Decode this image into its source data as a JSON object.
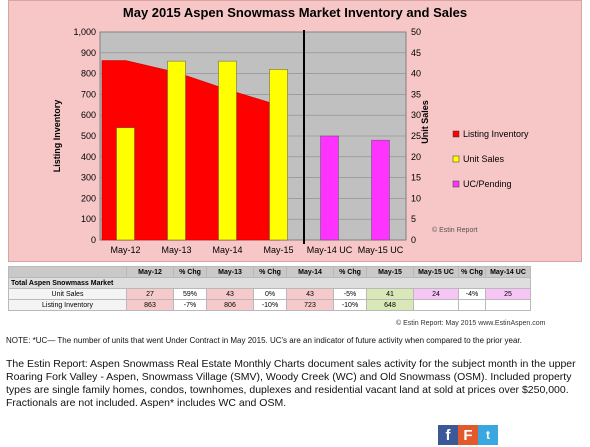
{
  "chart_data": {
    "type": "bar",
    "title": "May 2015 Aspen Snowmass Market Inventory and Sales",
    "categories": [
      "May-12",
      "May-13",
      "May-14",
      "May-15",
      "May-14 UC",
      "May-15 UC"
    ],
    "ylabel": "Listing Inventory",
    "y2label": "Unit Sales",
    "ylim": [
      0,
      1000
    ],
    "y2lim": [
      0,
      50
    ],
    "yticks": [
      "0",
      "100",
      "200",
      "300",
      "400",
      "500",
      "600",
      "700",
      "800",
      "900",
      "1,000"
    ],
    "y2ticks": [
      "0",
      "5",
      "10",
      "15",
      "20",
      "25",
      "30",
      "35",
      "40",
      "45",
      "50"
    ],
    "series": [
      {
        "name": "Listing Inventory",
        "type": "area",
        "axis": "left",
        "color": "#ff0000",
        "values": [
          863,
          806,
          723,
          648,
          null,
          null
        ]
      },
      {
        "name": "Unit Sales",
        "type": "bar",
        "axis": "right",
        "color": "#ffff00",
        "values": [
          27,
          43,
          43,
          41,
          null,
          null
        ]
      },
      {
        "name": "UC/Pending",
        "type": "bar",
        "axis": "right",
        "color": "#ff33ff",
        "values": [
          null,
          null,
          null,
          null,
          25,
          24
        ]
      }
    ],
    "grid": true,
    "legend_position": "right"
  },
  "table": {
    "headers": [
      "May-12",
      "% Chg",
      "May-13",
      "% Chg",
      "May-14",
      "% Chg",
      "May-15",
      "May-15 UC",
      "% Chg",
      "May-14 UC"
    ],
    "group_label": "Total Aspen Snowmass Market",
    "rows": [
      {
        "label": "Unit Sales",
        "cells": [
          "27",
          "59%",
          "43",
          "0%",
          "43",
          "-5%",
          "41",
          "24",
          "-4%",
          "25"
        ]
      },
      {
        "label": "Listing Inventory",
        "cells": [
          "863",
          "-7%",
          "806",
          "-10%",
          "723",
          "-10%",
          "648",
          "",
          "",
          ""
        ]
      }
    ]
  },
  "copyright": "© Estin Report: May 2015 www.EstinAspen.com",
  "watermark": "© Estin Report",
  "note": "NOTE: *UC— The number of units that went Under Contract in May 2015. UC's are an indicator of future activity when compared to the prior year.",
  "body_text": "The Estin Report: Aspen Snowmass Real Estate Monthly Charts document sales activity for the subject month in the upper Roaring Fork Valley - Aspen, Snowmass Village (SMV), Woody Creek (WC) and Old Snowmass (OSM). Included property types are single family homes, condos, townhomes, duplexes and residential vacant land at sold at prices over $250,000. Fractionals are not included. Aspen* includes WC and OSM.",
  "social": {
    "facebook": "f",
    "favorite": "F",
    "twitter": "t"
  }
}
